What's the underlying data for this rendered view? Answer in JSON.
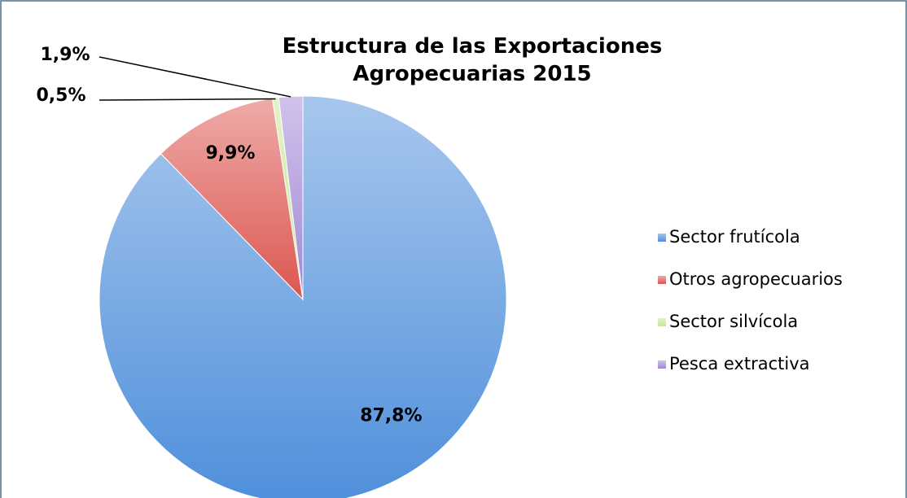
{
  "chart_data": {
    "type": "pie",
    "title": "Estructura de las Exportaciones Agropecuarias 2015",
    "categories": [
      "Sector frutícola",
      "Otros agropecuarios",
      "Sector silvícola",
      "Pesca extractiva"
    ],
    "values": [
      87.8,
      9.9,
      0.5,
      1.9
    ],
    "value_labels": [
      "87,8%",
      "9,9%",
      "0,5%",
      "1,9%"
    ],
    "colors": [
      "#4f8fdb",
      "#dc5650",
      "#c6e890",
      "#a187d6"
    ],
    "legend": "right"
  }
}
